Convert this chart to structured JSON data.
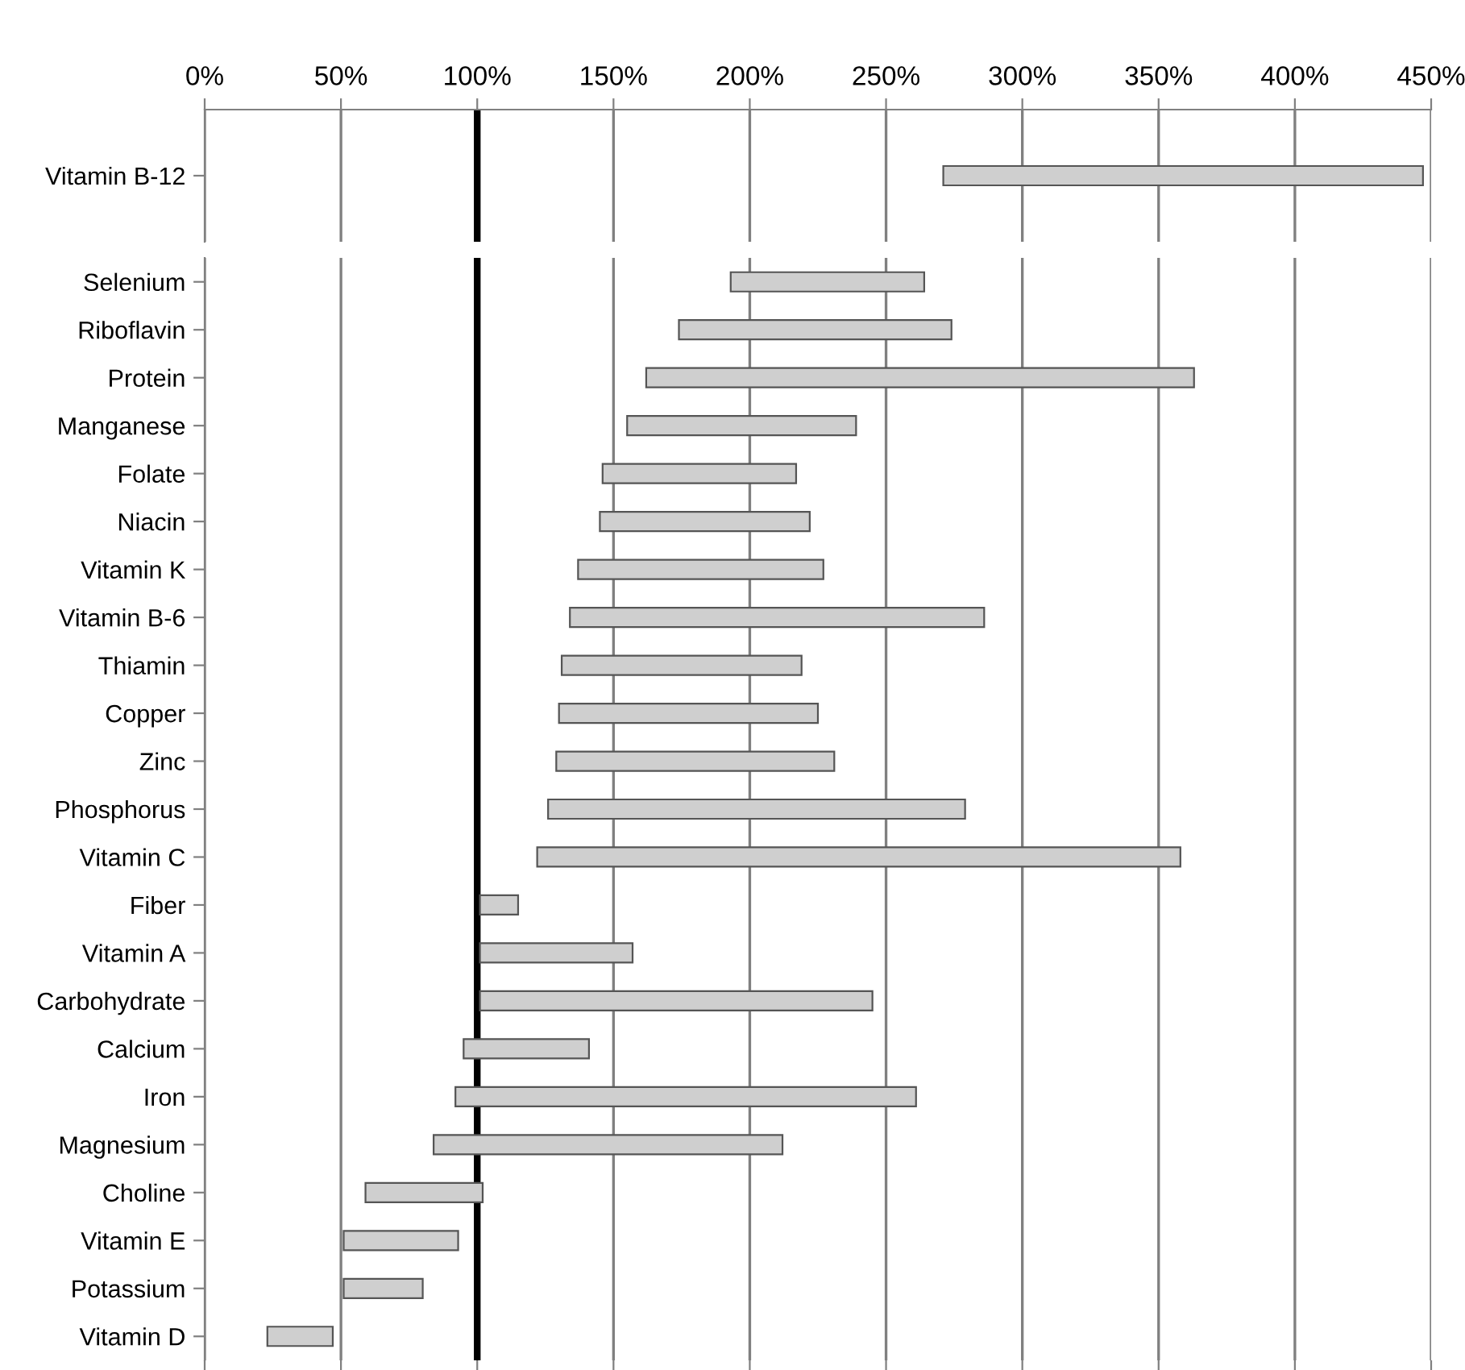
{
  "chart_data": [
    {
      "type": "bar",
      "orientation": "horizontal",
      "categories": [
        "Vitamin B-12"
      ],
      "series": [
        {
          "color": "#cfcfcf",
          "values": [
            176
          ],
          "base": [
            271
          ]
        }
      ],
      "xlim": [
        0,
        450
      ],
      "xticks": [
        {
          "value": 0,
          "label": "0%"
        },
        {
          "value": 50,
          "label": "50%"
        },
        {
          "value": 100,
          "label": "100%"
        },
        {
          "value": 150,
          "label": "150%"
        },
        {
          "value": 200,
          "label": "200%"
        },
        {
          "value": 250,
          "label": "250%"
        },
        {
          "value": 300,
          "label": "300%"
        },
        {
          "value": 350,
          "label": "350%"
        },
        {
          "value": 400,
          "label": "400%"
        },
        {
          "value": 450,
          "label": "450%"
        }
      ],
      "grid": "x",
      "legend": false,
      "ref_lines": [
        {
          "axis": "x",
          "value": 100,
          "color": "#000000"
        }
      ]
    },
    {
      "type": "bar",
      "orientation": "horizontal",
      "categories": [
        "Selenium",
        "Riboflavin",
        "Protein",
        "Manganese",
        "Folate",
        "Niacin",
        "Vitamin K",
        "Vitamin B-6",
        "Thiamin",
        "Copper",
        "Zinc",
        "Phosphorus",
        "Vitamin C",
        "Fiber",
        "Vitamin A",
        "Carbohydrate",
        "Calcium",
        "Iron",
        "Magnesium",
        "Choline",
        "Vitamin E",
        "Potassium",
        "Vitamin D"
      ],
      "series": [
        {
          "color": "#cfcfcf",
          "base": [
            193,
            174,
            162,
            155,
            146,
            145,
            137,
            134,
            131,
            130,
            129,
            126,
            122,
            101,
            101,
            101,
            95,
            92,
            84,
            59,
            51,
            51,
            23
          ],
          "values": [
            71,
            100,
            201,
            84,
            71,
            77,
            90,
            152,
            88,
            95,
            102,
            153,
            236,
            14,
            56,
            144,
            46,
            169,
            128,
            43,
            42,
            29,
            24
          ]
        }
      ],
      "xlim": [
        0,
        450
      ],
      "xticks": [
        {
          "value": 0,
          "label": null
        },
        {
          "value": 50,
          "label": null
        },
        {
          "value": 100,
          "label": null
        },
        {
          "value": 150,
          "label": null
        },
        {
          "value": 200,
          "label": null
        },
        {
          "value": 250,
          "label": null
        },
        {
          "value": 300,
          "label": null
        },
        {
          "value": 350,
          "label": null
        },
        {
          "value": 400,
          "label": null
        },
        {
          "value": 450,
          "label": null
        }
      ],
      "tick_labels": "y",
      "grid": "x",
      "legend": false,
      "ref_lines": [
        {
          "axis": "x",
          "value": 100,
          "color": "#000000"
        }
      ]
    }
  ]
}
